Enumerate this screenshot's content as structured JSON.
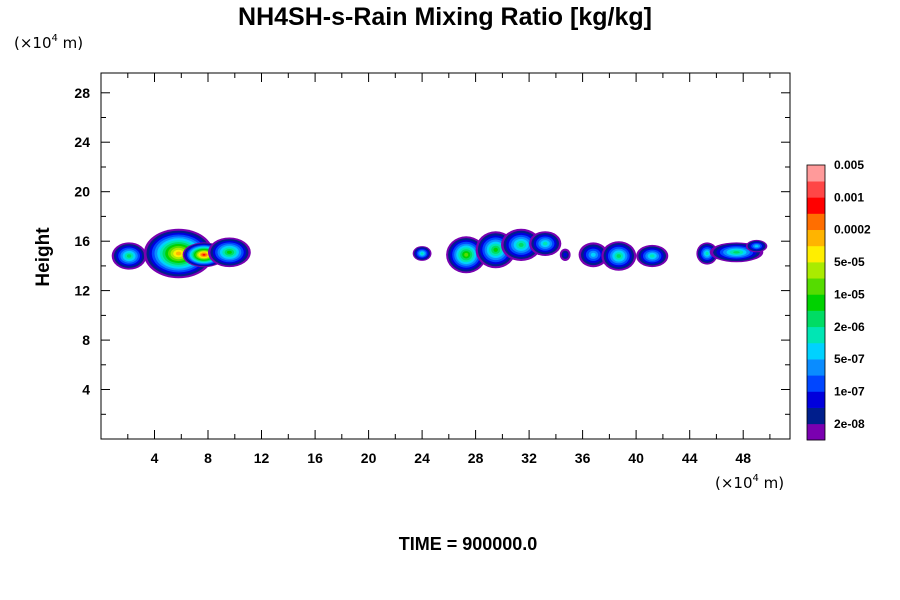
{
  "chart_data": {
    "type": "heatmap",
    "title": "NH4SH-s-Rain Mixing Ratio [kg/kg]",
    "ylabel": "Height",
    "xlabel": "",
    "x_unit": {
      "prefix": "(×10",
      "exp": "4",
      "suffix": " m)"
    },
    "y_unit": {
      "prefix": "(×10",
      "exp": "4",
      "suffix": " m)"
    },
    "xlim": [
      0,
      51.5
    ],
    "ylim": [
      0,
      29.6
    ],
    "xticks": [
      "4",
      "8",
      "12",
      "16",
      "20",
      "24",
      "28",
      "32",
      "36",
      "40",
      "44",
      "48"
    ],
    "yticks": [
      "4",
      "8",
      "12",
      "16",
      "20",
      "24",
      "28"
    ],
    "colorbar": {
      "colors": [
        "#7a00b0",
        "#001e8c",
        "#0000dc",
        "#0046ff",
        "#0a8cff",
        "#00d2ff",
        "#00e6b4",
        "#00dc64",
        "#00d200",
        "#55dc00",
        "#aaeb00",
        "#ffee00",
        "#ffb400",
        "#ff6e00",
        "#ff0000",
        "#ff4646",
        "#ff9a9a"
      ],
      "labels": [
        "2e-08",
        "1e-07",
        "5e-07",
        "2e-06",
        "1e-05",
        "5e-05",
        "0.0002",
        "0.001",
        "0.005"
      ]
    },
    "clouds": [
      {
        "x": 2.1,
        "y": 14.8,
        "rx": 1.3,
        "ry": 1.1,
        "peak": 7
      },
      {
        "x": 5.8,
        "y": 15.0,
        "rx": 2.6,
        "ry": 2.0,
        "peak": 12
      },
      {
        "x": 7.7,
        "y": 14.9,
        "rx": 1.6,
        "ry": 1.0,
        "peak": 14
      },
      {
        "x": 9.6,
        "y": 15.1,
        "rx": 1.6,
        "ry": 1.2,
        "peak": 8
      },
      {
        "x": 24.0,
        "y": 15.0,
        "rx": 0.7,
        "ry": 0.6,
        "peak": 6
      },
      {
        "x": 27.3,
        "y": 14.9,
        "rx": 1.5,
        "ry": 1.5,
        "peak": 9
      },
      {
        "x": 29.5,
        "y": 15.3,
        "rx": 1.5,
        "ry": 1.5,
        "peak": 8
      },
      {
        "x": 31.4,
        "y": 15.7,
        "rx": 1.5,
        "ry": 1.3,
        "peak": 7
      },
      {
        "x": 33.2,
        "y": 15.8,
        "rx": 1.2,
        "ry": 1.0,
        "peak": 6
      },
      {
        "x": 34.7,
        "y": 14.9,
        "rx": 0.4,
        "ry": 0.5,
        "peak": 2
      },
      {
        "x": 36.8,
        "y": 14.9,
        "rx": 1.1,
        "ry": 1.0,
        "peak": 5
      },
      {
        "x": 38.7,
        "y": 14.8,
        "rx": 1.3,
        "ry": 1.2,
        "peak": 7
      },
      {
        "x": 41.2,
        "y": 14.8,
        "rx": 1.2,
        "ry": 0.9,
        "peak": 6
      },
      {
        "x": 45.3,
        "y": 15.0,
        "rx": 0.8,
        "ry": 0.9,
        "peak": 6
      },
      {
        "x": 47.5,
        "y": 15.1,
        "rx": 2.0,
        "ry": 0.8,
        "peak": 7
      },
      {
        "x": 49.0,
        "y": 15.6,
        "rx": 0.8,
        "ry": 0.5,
        "peak": 5
      }
    ]
  },
  "footer": {
    "time_label": "TIME = 900000.0"
  }
}
